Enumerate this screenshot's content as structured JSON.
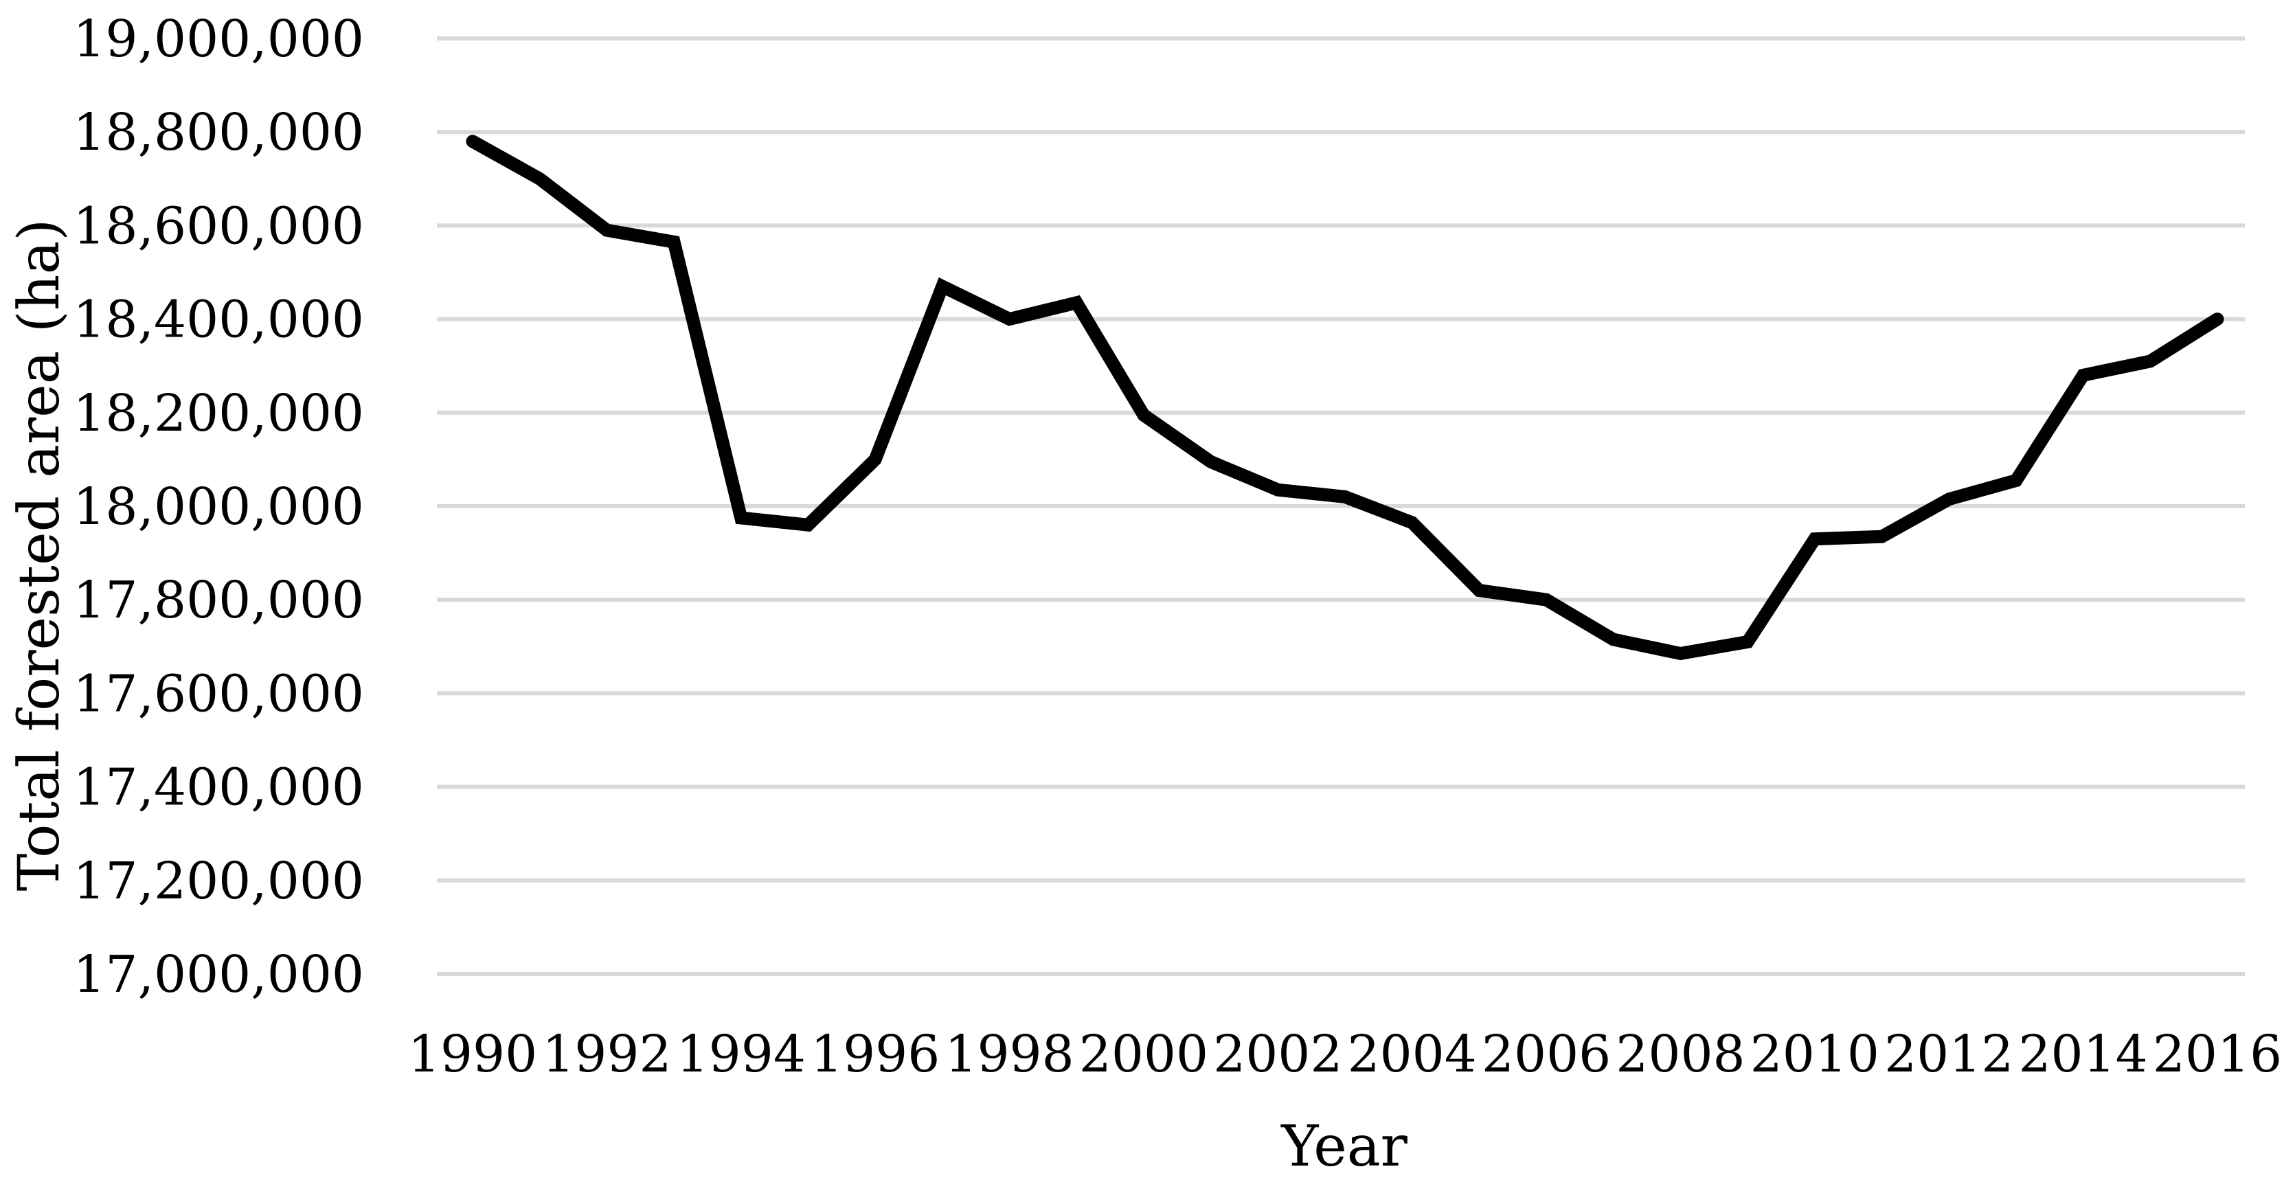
{
  "chart_data": {
    "type": "line",
    "title": "",
    "xlabel": "Year",
    "ylabel": "Total forested area (ha)",
    "ylim": [
      17000000,
      19000000
    ],
    "y_ticks": [
      17000000,
      17200000,
      17400000,
      17600000,
      17800000,
      18000000,
      18200000,
      18400000,
      18600000,
      18800000,
      19000000
    ],
    "y_tick_labels": [
      "17,000,000",
      "17,200,000",
      "17,400,000",
      "17,600,000",
      "17,800,000",
      "18,000,000",
      "18,200,000",
      "18,400,000",
      "18,600,000",
      "18,800,000",
      "19,000,000"
    ],
    "x_tick_labels": [
      "1990",
      "1992",
      "1994",
      "1996",
      "1998",
      "2000",
      "2002",
      "2004",
      "2006",
      "2008",
      "2010",
      "2012",
      "2014",
      "2016"
    ],
    "grid": true,
    "legend": "none",
    "line_color": "#000000",
    "grid_color": "#d9d9d9",
    "x": [
      1990,
      1991,
      1992,
      1993,
      1994,
      1995,
      1996,
      1997,
      1998,
      1999,
      2000,
      2001,
      2002,
      2003,
      2004,
      2005,
      2006,
      2007,
      2008,
      2009,
      2010,
      2011,
      2012,
      2013,
      2014,
      2015,
      2016
    ],
    "series": [
      {
        "values": [
          18780000,
          18700000,
          18590000,
          18565000,
          17975000,
          17960000,
          18100000,
          18470000,
          18400000,
          18435000,
          18195000,
          18095000,
          18035000,
          18020000,
          17965000,
          17820000,
          17800000,
          17715000,
          17685000,
          17710000,
          17930000,
          17935000,
          18015000,
          18055000,
          18280000,
          18310000,
          18400000
        ]
      }
    ]
  }
}
